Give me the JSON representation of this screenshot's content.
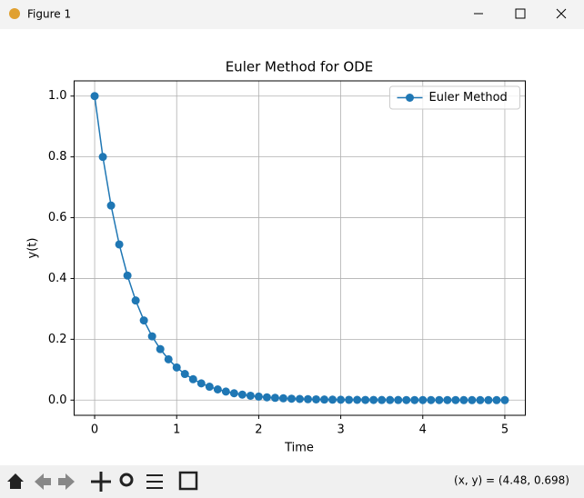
{
  "window": {
    "title": "Figure 1",
    "status": "(x, y) = (4.48, 0.698)"
  },
  "chart_data": {
    "type": "line",
    "title": "Euler Method for ODE",
    "x_label": "Time",
    "y_label": "y(t)",
    "x": [
      0,
      0.1,
      0.2,
      0.3,
      0.4,
      0.5,
      0.6,
      0.7,
      0.8,
      0.9,
      1.0,
      1.1,
      1.2,
      1.3,
      1.4,
      1.5,
      1.6,
      1.7,
      1.8,
      1.9,
      2.0,
      2.1,
      2.2,
      2.3,
      2.4,
      2.5,
      2.6,
      2.7,
      2.8,
      2.9,
      3.0,
      3.1,
      3.2,
      3.3,
      3.4,
      3.5,
      3.6,
      3.7,
      3.8,
      3.9,
      4.0,
      4.1,
      4.2,
      4.3,
      4.4,
      4.5,
      4.6,
      4.7,
      4.8,
      4.9,
      5.0
    ],
    "series": [
      {
        "name": "Euler Method",
        "color": "#1f77b4",
        "marker": "o",
        "values": [
          1.0,
          0.8,
          0.64,
          0.512,
          0.4096,
          0.3277,
          0.2621,
          0.2097,
          0.1678,
          0.1342,
          0.1074,
          0.0859,
          0.0687,
          0.055,
          0.044,
          0.0352,
          0.0281,
          0.0225,
          0.018,
          0.0144,
          0.0115,
          0.0092,
          0.0074,
          0.0059,
          0.0047,
          0.0038,
          0.003,
          0.0024,
          0.0019,
          0.0015,
          0.0012,
          0.001,
          0.0008,
          0.0006,
          0.0005,
          0.0004,
          0.0003,
          0.0003,
          0.0002,
          0.0002,
          0.0001,
          0.0001,
          0.0001,
          0.0001,
          0.0001,
          0,
          0,
          0,
          0,
          0,
          0
        ]
      }
    ],
    "xlim": [
      -0.25,
      5.25
    ],
    "ylim": [
      -0.05,
      1.05
    ],
    "xticks": [
      0,
      1,
      2,
      3,
      4,
      5
    ],
    "yticks": [
      {
        "value": 0,
        "label": "0.0"
      },
      {
        "value": 0.2,
        "label": "0.2"
      },
      {
        "value": 0.4,
        "label": "0.4"
      },
      {
        "value": 0.6,
        "label": "0.6"
      },
      {
        "value": 0.8,
        "label": "0.8"
      },
      {
        "value": 1.0,
        "label": "1.0"
      }
    ],
    "grid": true,
    "legend": "upper right"
  }
}
